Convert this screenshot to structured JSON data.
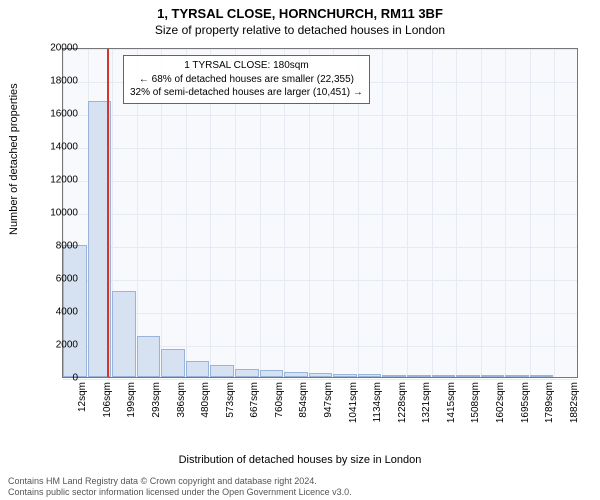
{
  "title_line1": "1, TYRSAL CLOSE, HORNCHURCH, RM11 3BF",
  "title_line2": "Size of property relative to detached houses in London",
  "ylabel": "Number of detached properties",
  "xlabel": "Distribution of detached houses by size in London",
  "chart": {
    "type": "histogram",
    "background_color": "#f7f9fc",
    "grid_color": "#e6eaf2",
    "border_color": "#777777",
    "bar_fill": "#d6e2f2",
    "bar_border": "#99b3d9",
    "marker_color": "#d9332e",
    "ylim": [
      0,
      20000
    ],
    "ytick_step": 2000,
    "yticks": [
      0,
      2000,
      4000,
      6000,
      8000,
      10000,
      12000,
      14000,
      16000,
      18000,
      20000
    ],
    "xticks": [
      "12sqm",
      "106sqm",
      "199sqm",
      "293sqm",
      "386sqm",
      "480sqm",
      "573sqm",
      "667sqm",
      "760sqm",
      "854sqm",
      "947sqm",
      "1041sqm",
      "1134sqm",
      "1228sqm",
      "1321sqm",
      "1415sqm",
      "1508sqm",
      "1602sqm",
      "1695sqm",
      "1789sqm",
      "1882sqm"
    ],
    "bars": [
      8000,
      16700,
      5200,
      2500,
      1700,
      1000,
      700,
      500,
      400,
      300,
      250,
      200,
      180,
      150,
      120,
      100,
      80,
      70,
      60,
      50
    ],
    "marker_x_index": 1.78,
    "annotation": {
      "line1": "1 TYRSAL CLOSE: 180sqm",
      "line2": "← 68% of detached houses are smaller (22,355)",
      "line3": "32% of semi-detached houses are larger (10,451) →",
      "border_color": "#d9332e"
    }
  },
  "footer_line1": "Contains HM Land Registry data © Crown copyright and database right 2024.",
  "footer_line2": "Contains public sector information licensed under the Open Government Licence v3.0.",
  "fonts": {
    "title": 13,
    "subtitle": 12,
    "axis_label": 11,
    "tick": 10,
    "annotation": 10,
    "footer": 9
  }
}
